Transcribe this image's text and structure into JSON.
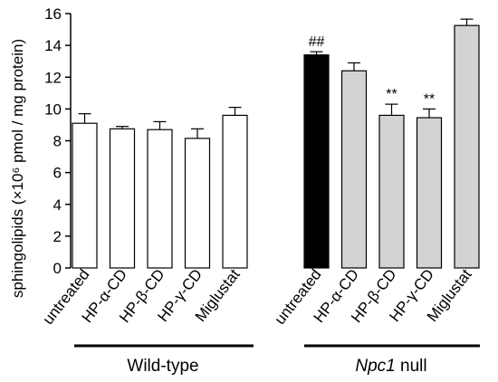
{
  "chart_data": {
    "type": "bar",
    "ylabel": "sphingolipids (×10⁶ pmol / mg protein)",
    "ylim": [
      0,
      16
    ],
    "yticks": [
      0,
      2,
      4,
      6,
      8,
      10,
      12,
      14,
      16
    ],
    "groups": [
      {
        "name": "Wild-type",
        "name_italic": "",
        "name_rest": "Wild-type",
        "bars": [
          {
            "label": "untreated",
            "value": 9.1,
            "error": 0.6,
            "fill": "#ffffff",
            "annotation": ""
          },
          {
            "label": "HP-α-CD",
            "value": 8.75,
            "error": 0.15,
            "fill": "#ffffff",
            "annotation": ""
          },
          {
            "label": "HP-β-CD",
            "value": 8.7,
            "error": 0.5,
            "fill": "#ffffff",
            "annotation": ""
          },
          {
            "label": "HP-γ-CD",
            "value": 8.15,
            "error": 0.6,
            "fill": "#ffffff",
            "annotation": ""
          },
          {
            "label": "Miglustat",
            "value": 9.6,
            "error": 0.5,
            "fill": "#ffffff",
            "annotation": ""
          }
        ]
      },
      {
        "name": "Npc1 null",
        "name_italic": "Npc1",
        "name_rest": " null",
        "bars": [
          {
            "label": "untreated",
            "value": 13.4,
            "error": 0.2,
            "fill": "#000000",
            "annotation": "##"
          },
          {
            "label": "HP-α-CD",
            "value": 12.4,
            "error": 0.5,
            "fill": "#d3d3d3",
            "annotation": ""
          },
          {
            "label": "HP-β-CD",
            "value": 9.6,
            "error": 0.7,
            "fill": "#d3d3d3",
            "annotation": "**"
          },
          {
            "label": "HP-γ-CD",
            "value": 9.45,
            "error": 0.55,
            "fill": "#d3d3d3",
            "annotation": "**"
          },
          {
            "label": "Miglustat",
            "value": 15.25,
            "error": 0.4,
            "fill": "#d3d3d3",
            "annotation": ""
          }
        ]
      }
    ],
    "grid": false,
    "legend": "none"
  }
}
